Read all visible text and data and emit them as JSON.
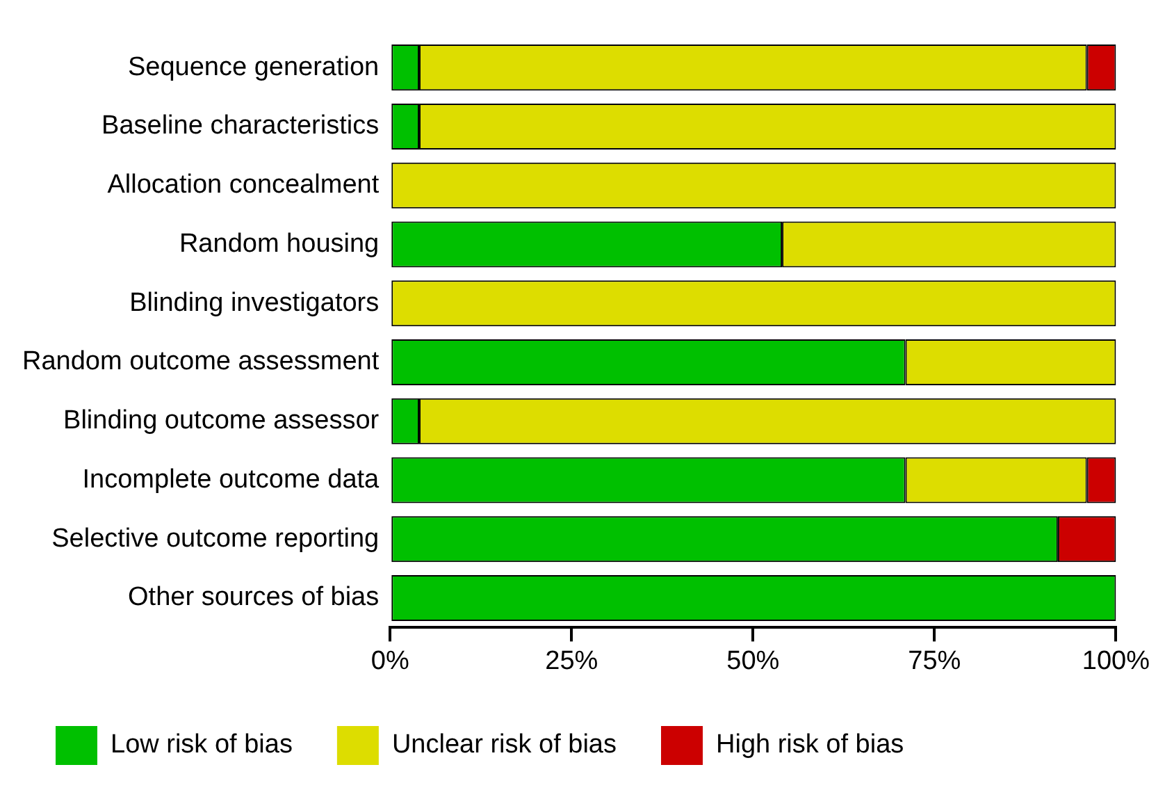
{
  "chart_data": {
    "type": "bar",
    "orientation": "horizontal",
    "stacked": true,
    "categories": [
      "Sequence generation",
      "Baseline characteristics",
      "Allocation concealment",
      "Random housing",
      "Blinding investigators",
      "Random outcome assessment",
      "Blinding outcome assessor",
      "Incomplete outcome data",
      "Selective outcome reporting",
      "Other sources of bias"
    ],
    "series": [
      {
        "name": "Low risk of bias",
        "color": "#00c000",
        "values": [
          4,
          4,
          0,
          54,
          0,
          71,
          4,
          71,
          92,
          100
        ]
      },
      {
        "name": "Unclear risk of bias",
        "color": "#dddd00",
        "values": [
          92,
          96,
          100,
          46,
          100,
          29,
          96,
          25,
          0,
          0
        ]
      },
      {
        "name": "High risk of bias",
        "color": "#cc0000",
        "values": [
          4,
          0,
          0,
          0,
          0,
          0,
          0,
          4,
          8,
          0
        ]
      }
    ],
    "xlim": [
      0,
      100
    ],
    "xticks": [
      {
        "value": 0,
        "label": "0%"
      },
      {
        "value": 25,
        "label": "25%"
      },
      {
        "value": 50,
        "label": "50%"
      },
      {
        "value": 75,
        "label": "75%"
      },
      {
        "value": 100,
        "label": "100%"
      }
    ],
    "grid": false,
    "legend": "bottom"
  }
}
